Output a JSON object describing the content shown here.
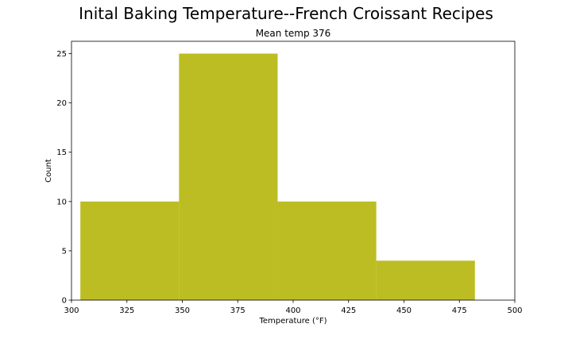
{
  "chart_data": {
    "type": "bar",
    "suptitle": "Inital Baking Temperature--French Croissant Recipes",
    "title": "Mean temp 376",
    "xlabel": "Temperature (°F)",
    "ylabel": "Count",
    "xlim": [
      300,
      500
    ],
    "ylim": [
      0,
      26.25
    ],
    "xticks": [
      300,
      325,
      350,
      375,
      400,
      425,
      450,
      475,
      500
    ],
    "yticks": [
      0,
      5,
      10,
      15,
      20,
      25
    ],
    "bins": [
      {
        "x0": 304,
        "x1": 348.5,
        "count": 10
      },
      {
        "x0": 348.5,
        "x1": 393,
        "count": 25
      },
      {
        "x0": 393,
        "x1": 437.5,
        "count": 10
      },
      {
        "x0": 437.5,
        "x1": 482,
        "count": 4
      }
    ],
    "bar_color": "#bcbd22",
    "grid": false,
    "legend": null
  }
}
